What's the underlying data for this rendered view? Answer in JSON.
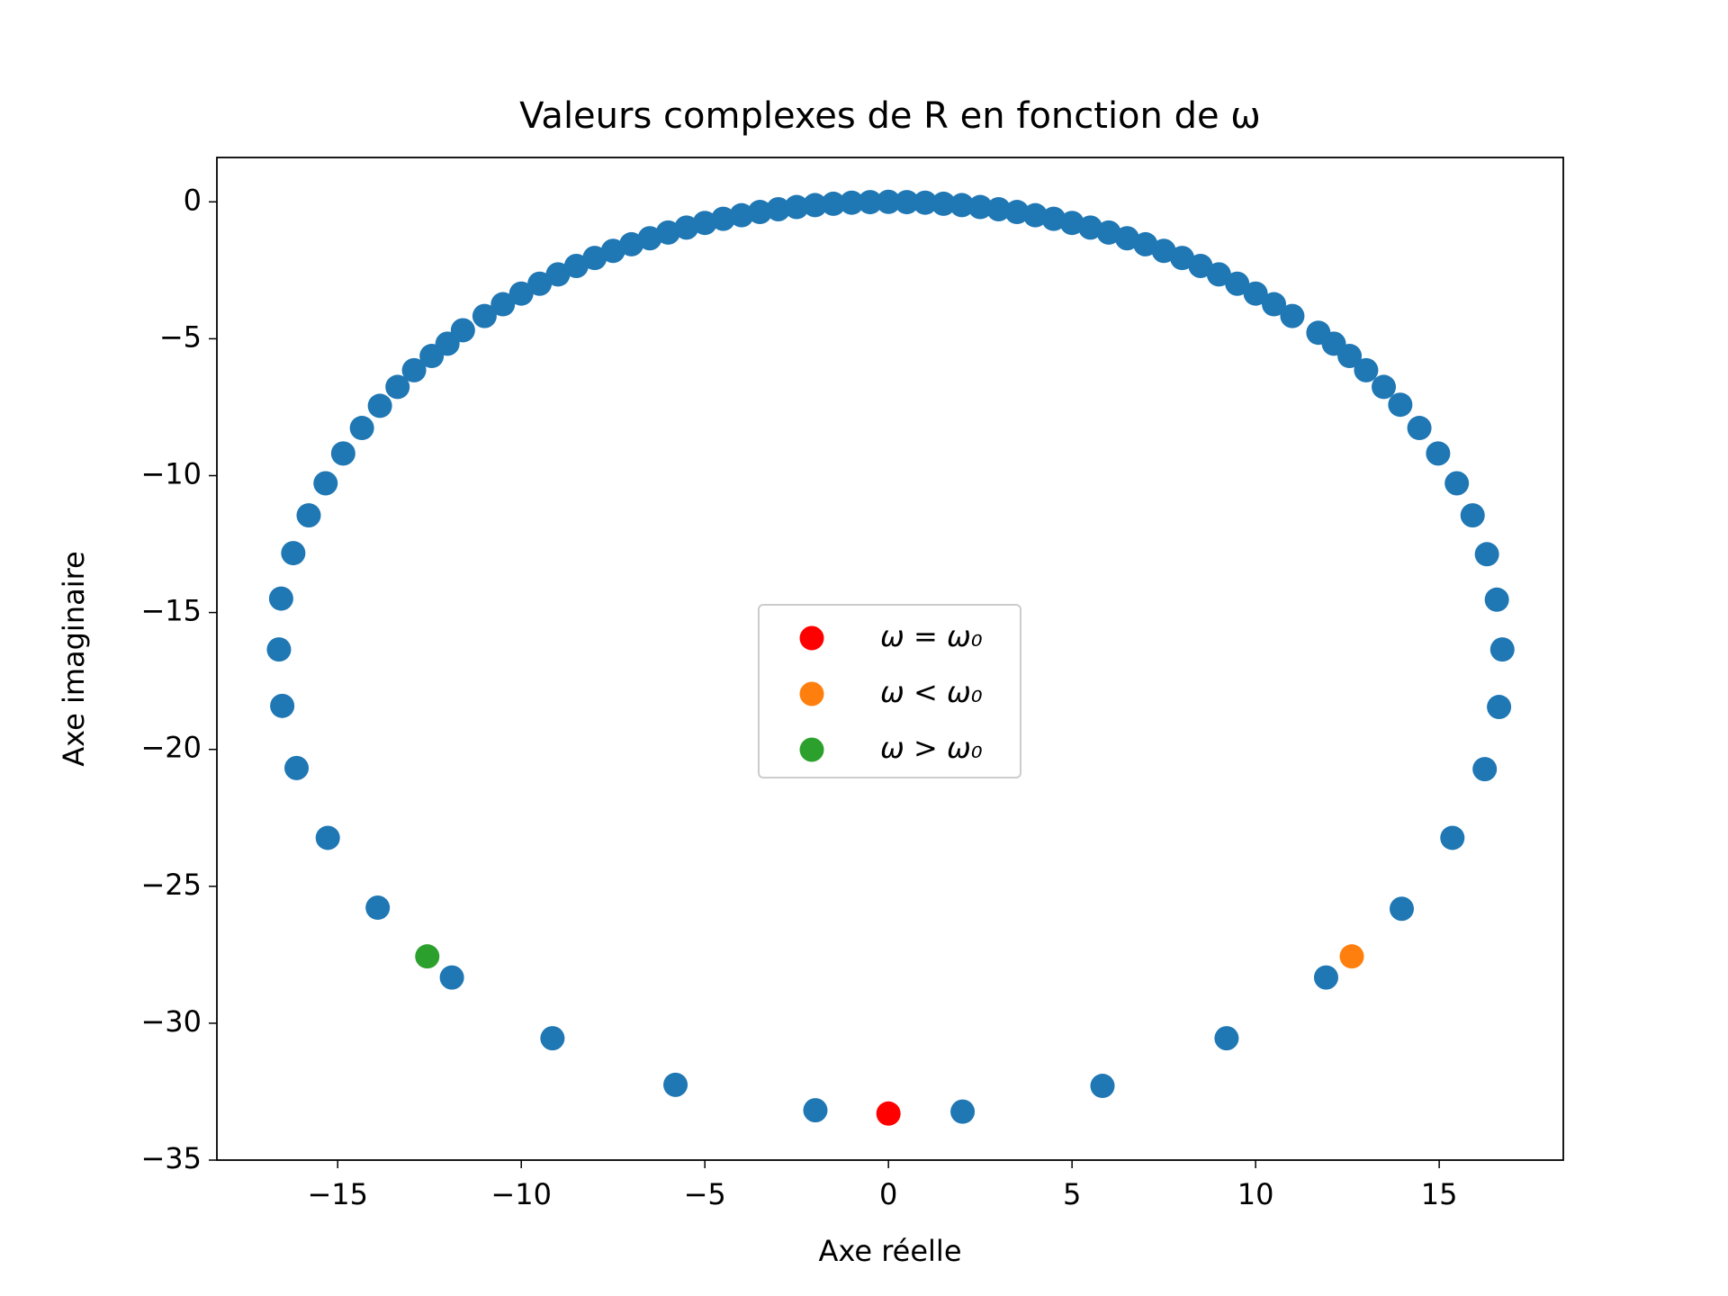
{
  "chart_data": {
    "type": "scatter",
    "title": "Valeurs complexes de R en fonction de ω",
    "x_label": "Axe réelle",
    "y_label": "Axe imaginaire",
    "xlim": [
      -18.29,
      18.38
    ],
    "ylim": [
      -35,
      1.62
    ],
    "xticks": [
      {
        "value": -15,
        "label": "−15"
      },
      {
        "value": -10,
        "label": "−10"
      },
      {
        "value": -5,
        "label": "−5"
      },
      0,
      5,
      10,
      15
    ],
    "yticks": [
      0,
      {
        "value": -5,
        "label": "−5"
      },
      {
        "value": -10,
        "label": "−10"
      },
      {
        "value": -15,
        "label": "−15"
      },
      {
        "value": -20,
        "label": "−20"
      },
      {
        "value": -25,
        "label": "−25"
      },
      {
        "value": -30,
        "label": "−30"
      },
      {
        "value": -35,
        "label": "−35"
      }
    ],
    "legend": "center",
    "series": [
      {
        "color": "#1f77b4",
        "x": [
          -1.99,
          -5.8,
          -9.15,
          -11.89,
          -13.91,
          -15.27,
          -16.12,
          -16.51,
          -16.6,
          -16.54,
          -16.21,
          -15.79,
          -15.33,
          -14.85,
          -14.34,
          -13.85,
          -13.37,
          -12.92,
          -12.44,
          -12.01,
          -11.59,
          -11,
          -10.5,
          -10,
          -9.5,
          -9,
          -8.5,
          -8,
          -7.5,
          -7,
          -6.5,
          -6,
          -5.5,
          -5,
          -4.5,
          -4,
          -3.5,
          -3,
          -2.5,
          -2,
          -1.5,
          -1,
          -0.5,
          0,
          0.5,
          1,
          1.5,
          2,
          2.5,
          3,
          3.5,
          4,
          4.5,
          5,
          5.5,
          6,
          6.5,
          7,
          7.5,
          8,
          8.5,
          9,
          9.5,
          10,
          10.5,
          11,
          11.71,
          12.13,
          12.56,
          13.01,
          13.49,
          13.94,
          14.46,
          14.97,
          15.48,
          15.91,
          16.3,
          16.57,
          16.72,
          16.63,
          16.24,
          15.36,
          13.98,
          11.92,
          9.21,
          5.83,
          2.02
        ],
        "values": [
          -33.18,
          -32.25,
          -30.55,
          -28.33,
          -25.78,
          -23.23,
          -20.68,
          -18.41,
          -16.35,
          -14.49,
          -12.83,
          -11.45,
          -10.28,
          -9.19,
          -8.26,
          -7.45,
          -6.76,
          -6.15,
          -5.63,
          -5.18,
          -4.69,
          -4.17,
          -3.74,
          -3.35,
          -2.99,
          -2.65,
          -2.34,
          -2.05,
          -1.79,
          -1.55,
          -1.33,
          -1.12,
          -0.94,
          -0.77,
          -0.62,
          -0.49,
          -0.37,
          -0.27,
          -0.19,
          -0.12,
          -0.07,
          -0.03,
          -0.01,
          0,
          -0.01,
          -0.03,
          -0.07,
          -0.12,
          -0.19,
          -0.27,
          -0.37,
          -0.49,
          -0.62,
          -0.77,
          -0.94,
          -1.12,
          -1.33,
          -1.55,
          -1.79,
          -2.05,
          -2.34,
          -2.65,
          -2.99,
          -3.35,
          -3.74,
          -4.17,
          -4.78,
          -5.18,
          -5.63,
          -6.15,
          -6.76,
          -7.41,
          -8.26,
          -9.19,
          -10.28,
          -11.45,
          -12.87,
          -14.53,
          -16.35,
          -18.45,
          -20.72,
          -23.23,
          -25.82,
          -28.33,
          -30.55,
          -32.29,
          -33.23
        ]
      },
      {
        "name": "ω = ω₀",
        "color": "#ff0000",
        "x": [
          0
        ],
        "values": [
          -33.3
        ]
      },
      {
        "name": "ω < ω₀",
        "color": "#ff7f0e",
        "x": [
          12.62
        ],
        "values": [
          -27.56
        ]
      },
      {
        "name": "ω > ω₀",
        "color": "#2ca02c",
        "x": [
          -12.56
        ],
        "values": [
          -27.56
        ]
      }
    ]
  }
}
